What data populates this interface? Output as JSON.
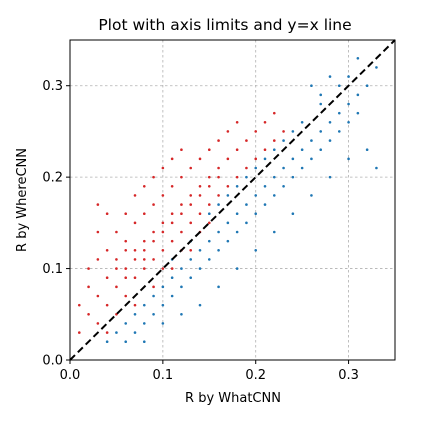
{
  "chart_data": {
    "type": "scatter",
    "title": "Plot with axis limits and y=x line",
    "xlabel": "R by WhatCNN",
    "ylabel": "R by WhereCNN",
    "xlim": [
      0.0,
      0.35
    ],
    "ylim": [
      0.0,
      0.35
    ],
    "xticks": [
      "0.0",
      "0.1",
      "0.2",
      "0.3"
    ],
    "yticks": [
      "0.0",
      "0.1",
      "0.2",
      "0.3"
    ],
    "grid": true,
    "colors": {
      "red": "#d62728",
      "blue": "#1f77b4",
      "identity_line": "#000000"
    },
    "reference_line": {
      "style": "dashed",
      "points": [
        [
          0.0,
          0.0
        ],
        [
          0.35,
          0.35
        ]
      ]
    },
    "series": [
      {
        "color": "#d62728",
        "points": [
          [
            0.01,
            0.03
          ],
          [
            0.01,
            0.06
          ],
          [
            0.02,
            0.05
          ],
          [
            0.02,
            0.08
          ],
          [
            0.02,
            0.1
          ],
          [
            0.03,
            0.04
          ],
          [
            0.03,
            0.07
          ],
          [
            0.03,
            0.11
          ],
          [
            0.03,
            0.17
          ],
          [
            0.03,
            0.14
          ],
          [
            0.04,
            0.06
          ],
          [
            0.04,
            0.09
          ],
          [
            0.04,
            0.12
          ],
          [
            0.04,
            0.16
          ],
          [
            0.05,
            0.08
          ],
          [
            0.05,
            0.11
          ],
          [
            0.05,
            0.14
          ],
          [
            0.05,
            0.1
          ],
          [
            0.06,
            0.07
          ],
          [
            0.06,
            0.1
          ],
          [
            0.06,
            0.13
          ],
          [
            0.06,
            0.16
          ],
          [
            0.06,
            0.12
          ],
          [
            0.07,
            0.09
          ],
          [
            0.07,
            0.12
          ],
          [
            0.07,
            0.15
          ],
          [
            0.07,
            0.11
          ],
          [
            0.07,
            0.18
          ],
          [
            0.08,
            0.1
          ],
          [
            0.08,
            0.13
          ],
          [
            0.08,
            0.16
          ],
          [
            0.08,
            0.12
          ],
          [
            0.08,
            0.19
          ],
          [
            0.09,
            0.11
          ],
          [
            0.09,
            0.14
          ],
          [
            0.09,
            0.17
          ],
          [
            0.09,
            0.13
          ],
          [
            0.09,
            0.2
          ],
          [
            0.1,
            0.12
          ],
          [
            0.1,
            0.15
          ],
          [
            0.1,
            0.18
          ],
          [
            0.1,
            0.14
          ],
          [
            0.1,
            0.21
          ],
          [
            0.11,
            0.13
          ],
          [
            0.11,
            0.16
          ],
          [
            0.11,
            0.19
          ],
          [
            0.11,
            0.15
          ],
          [
            0.11,
            0.22
          ],
          [
            0.12,
            0.14
          ],
          [
            0.12,
            0.17
          ],
          [
            0.12,
            0.2
          ],
          [
            0.12,
            0.16
          ],
          [
            0.12,
            0.23
          ],
          [
            0.13,
            0.15
          ],
          [
            0.13,
            0.18
          ],
          [
            0.13,
            0.21
          ],
          [
            0.13,
            0.17
          ],
          [
            0.14,
            0.16
          ],
          [
            0.14,
            0.19
          ],
          [
            0.14,
            0.22
          ],
          [
            0.14,
            0.18
          ],
          [
            0.15,
            0.17
          ],
          [
            0.15,
            0.2
          ],
          [
            0.15,
            0.23
          ],
          [
            0.15,
            0.19
          ],
          [
            0.16,
            0.18
          ],
          [
            0.16,
            0.21
          ],
          [
            0.16,
            0.24
          ],
          [
            0.16,
            0.2
          ],
          [
            0.17,
            0.19
          ],
          [
            0.17,
            0.22
          ],
          [
            0.17,
            0.25
          ],
          [
            0.18,
            0.2
          ],
          [
            0.18,
            0.23
          ],
          [
            0.18,
            0.26
          ],
          [
            0.19,
            0.21
          ],
          [
            0.19,
            0.24
          ],
          [
            0.2,
            0.22
          ],
          [
            0.2,
            0.25
          ],
          [
            0.21,
            0.23
          ],
          [
            0.21,
            0.26
          ],
          [
            0.22,
            0.24
          ],
          [
            0.22,
            0.27
          ],
          [
            0.23,
            0.25
          ],
          [
            0.06,
            0.09
          ],
          [
            0.08,
            0.11
          ],
          [
            0.1,
            0.1
          ],
          [
            0.12,
            0.12
          ],
          [
            0.14,
            0.14
          ],
          [
            0.05,
            0.05
          ],
          [
            0.09,
            0.08
          ],
          [
            0.11,
            0.1
          ],
          [
            0.13,
            0.12
          ],
          [
            0.04,
            0.03
          ],
          [
            0.07,
            0.06
          ],
          [
            0.15,
            0.15
          ]
        ]
      },
      {
        "color": "#1f77b4",
        "points": [
          [
            0.04,
            0.02
          ],
          [
            0.05,
            0.03
          ],
          [
            0.06,
            0.02
          ],
          [
            0.06,
            0.04
          ],
          [
            0.07,
            0.03
          ],
          [
            0.07,
            0.05
          ],
          [
            0.08,
            0.04
          ],
          [
            0.08,
            0.06
          ],
          [
            0.09,
            0.05
          ],
          [
            0.09,
            0.07
          ],
          [
            0.1,
            0.06
          ],
          [
            0.1,
            0.08
          ],
          [
            0.11,
            0.07
          ],
          [
            0.11,
            0.09
          ],
          [
            0.12,
            0.08
          ],
          [
            0.12,
            0.1
          ],
          [
            0.13,
            0.09
          ],
          [
            0.13,
            0.11
          ],
          [
            0.14,
            0.1
          ],
          [
            0.14,
            0.12
          ],
          [
            0.15,
            0.11
          ],
          [
            0.15,
            0.13
          ],
          [
            0.16,
            0.12
          ],
          [
            0.16,
            0.14
          ],
          [
            0.17,
            0.13
          ],
          [
            0.17,
            0.15
          ],
          [
            0.18,
            0.14
          ],
          [
            0.18,
            0.16
          ],
          [
            0.19,
            0.15
          ],
          [
            0.19,
            0.17
          ],
          [
            0.2,
            0.16
          ],
          [
            0.2,
            0.18
          ],
          [
            0.21,
            0.17
          ],
          [
            0.21,
            0.19
          ],
          [
            0.22,
            0.18
          ],
          [
            0.22,
            0.2
          ],
          [
            0.23,
            0.19
          ],
          [
            0.23,
            0.21
          ],
          [
            0.24,
            0.2
          ],
          [
            0.24,
            0.22
          ],
          [
            0.25,
            0.21
          ],
          [
            0.25,
            0.23
          ],
          [
            0.26,
            0.22
          ],
          [
            0.26,
            0.24
          ],
          [
            0.27,
            0.23
          ],
          [
            0.27,
            0.25
          ],
          [
            0.28,
            0.24
          ],
          [
            0.28,
            0.26
          ],
          [
            0.29,
            0.25
          ],
          [
            0.29,
            0.27
          ],
          [
            0.3,
            0.26
          ],
          [
            0.3,
            0.28
          ],
          [
            0.31,
            0.27
          ],
          [
            0.31,
            0.29
          ],
          [
            0.32,
            0.3
          ],
          [
            0.33,
            0.32
          ],
          [
            0.33,
            0.21
          ],
          [
            0.32,
            0.23
          ],
          [
            0.3,
            0.22
          ],
          [
            0.28,
            0.2
          ],
          [
            0.26,
            0.18
          ],
          [
            0.24,
            0.16
          ],
          [
            0.22,
            0.14
          ],
          [
            0.2,
            0.12
          ],
          [
            0.18,
            0.1
          ],
          [
            0.16,
            0.08
          ],
          [
            0.14,
            0.06
          ],
          [
            0.12,
            0.05
          ],
          [
            0.1,
            0.04
          ],
          [
            0.08,
            0.02
          ],
          [
            0.15,
            0.16
          ],
          [
            0.17,
            0.18
          ],
          [
            0.19,
            0.2
          ],
          [
            0.21,
            0.22
          ],
          [
            0.23,
            0.24
          ],
          [
            0.25,
            0.26
          ],
          [
            0.27,
            0.28
          ],
          [
            0.29,
            0.3
          ],
          [
            0.3,
            0.31
          ],
          [
            0.31,
            0.33
          ],
          [
            0.24,
            0.25
          ],
          [
            0.22,
            0.23
          ],
          [
            0.13,
            0.13
          ],
          [
            0.11,
            0.11
          ],
          [
            0.26,
            0.3
          ],
          [
            0.28,
            0.31
          ],
          [
            0.27,
            0.29
          ],
          [
            0.2,
            0.21
          ],
          [
            0.18,
            0.19
          ],
          [
            0.16,
            0.17
          ]
        ]
      }
    ]
  }
}
